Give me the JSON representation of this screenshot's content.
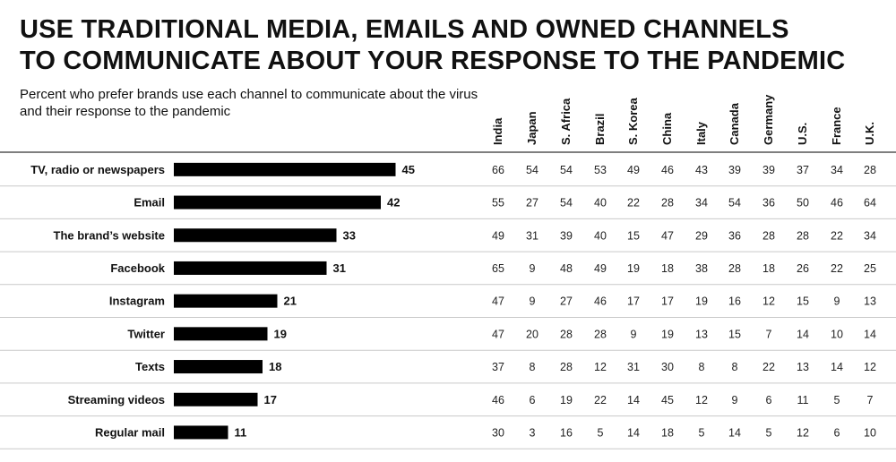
{
  "chart_data": {
    "type": "bar",
    "orientation": "horizontal",
    "title_line1": "USE TRADITIONAL MEDIA, EMAILS AND OWNED CHANNELS",
    "title_line2": "TO COMMUNICATE ABOUT YOUR RESPONSE TO THE PANDEMIC",
    "subtitle": "Percent who prefer brands use each channel to communicate about the virus and their response to the pandemic",
    "categories": [
      "TV, radio or newspapers",
      "Email",
      "The brand’s website",
      "Facebook",
      "Instagram",
      "Twitter",
      "Texts",
      "Streaming videos",
      "Regular mail"
    ],
    "values": [
      45,
      42,
      33,
      31,
      21,
      19,
      18,
      17,
      11
    ],
    "xlim": [
      0,
      50
    ],
    "bar_color": "#000000",
    "table": {
      "columns": [
        "India",
        "Japan",
        "S. Africa",
        "Brazil",
        "S. Korea",
        "China",
        "Italy",
        "Canada",
        "Germany",
        "U.S.",
        "France",
        "U.K."
      ],
      "rows": [
        [
          66,
          54,
          54,
          53,
          49,
          46,
          43,
          39,
          39,
          37,
          34,
          28
        ],
        [
          55,
          27,
          54,
          40,
          22,
          28,
          34,
          54,
          36,
          50,
          46,
          64
        ],
        [
          49,
          31,
          39,
          40,
          15,
          47,
          29,
          36,
          28,
          28,
          22,
          34
        ],
        [
          65,
          9,
          48,
          49,
          19,
          18,
          38,
          28,
          18,
          26,
          22,
          25
        ],
        [
          47,
          9,
          27,
          46,
          17,
          17,
          19,
          16,
          12,
          15,
          9,
          13
        ],
        [
          47,
          20,
          28,
          28,
          9,
          19,
          13,
          15,
          7,
          14,
          10,
          14
        ],
        [
          37,
          8,
          28,
          12,
          31,
          30,
          8,
          8,
          22,
          13,
          14,
          12
        ],
        [
          46,
          6,
          19,
          22,
          14,
          45,
          12,
          9,
          6,
          11,
          5,
          7
        ],
        [
          30,
          3,
          16,
          5,
          14,
          18,
          5,
          14,
          5,
          12,
          6,
          10
        ]
      ]
    }
  }
}
